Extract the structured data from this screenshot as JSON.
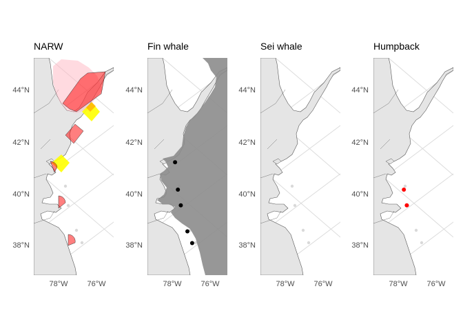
{
  "figure": {
    "colors": {
      "background": "#ffffff",
      "land": "#e5e5e5",
      "coast_stroke": "#555555",
      "graticule": "#dcdcdc",
      "tick_text": "#4d4d4d",
      "tick_mark": "#333333",
      "island": "#d9d9d9"
    },
    "y_axis_labels": [
      "44°N",
      "42°N",
      "40°N",
      "38°N"
    ],
    "x_axis_labels": [
      "78°W",
      "76°W"
    ],
    "panels": [
      {
        "title": "NARW",
        "layers": [
          {
            "kind": "area",
            "fill": "#ffb6c1",
            "opacity": 0.5,
            "shape": "north-pink"
          },
          {
            "kind": "area",
            "fill": "#ff0000",
            "opacity": 0.5,
            "shape": "north-red"
          },
          {
            "kind": "area",
            "fill": "#ff0000",
            "opacity": 0.5,
            "shape": "mid-red"
          },
          {
            "kind": "area",
            "fill": "#ffff00",
            "opacity": 0.9,
            "shape": "yellow-north"
          },
          {
            "kind": "area",
            "fill": "#ffa500",
            "opacity": 0.7,
            "shape": "orange-overlap"
          },
          {
            "kind": "area",
            "fill": "#ffff00",
            "opacity": 0.9,
            "shape": "yellow-south"
          },
          {
            "kind": "area",
            "fill": "#ff0000",
            "opacity": 0.5,
            "shape": "arc-1"
          },
          {
            "kind": "area",
            "fill": "#ff0000",
            "opacity": 0.5,
            "shape": "arc-2"
          },
          {
            "kind": "area",
            "fill": "#ff0000",
            "opacity": 0.5,
            "shape": "arc-3"
          }
        ]
      },
      {
        "title": "Fin whale",
        "layers": [
          {
            "kind": "area",
            "fill": "#8c8c8c",
            "opacity": 0.9,
            "shape": "offshore-all"
          },
          {
            "kind": "points",
            "fill": "#000000",
            "points": [
              {
                "lon": -77.85,
                "lat": 41.2
              },
              {
                "lon": -77.7,
                "lat": 40.15
              },
              {
                "lon": -77.55,
                "lat": 39.55
              },
              {
                "lon": -77.2,
                "lat": 38.55
              },
              {
                "lon": -76.95,
                "lat": 38.1
              }
            ]
          }
        ]
      },
      {
        "title": "Sei whale",
        "layers": []
      },
      {
        "title": "Humpback",
        "layers": [
          {
            "kind": "points",
            "fill": "#ff0000",
            "points": [
              {
                "lon": -77.7,
                "lat": 40.15
              },
              {
                "lon": -77.55,
                "lat": 39.55
              }
            ]
          }
        ]
      }
    ]
  }
}
